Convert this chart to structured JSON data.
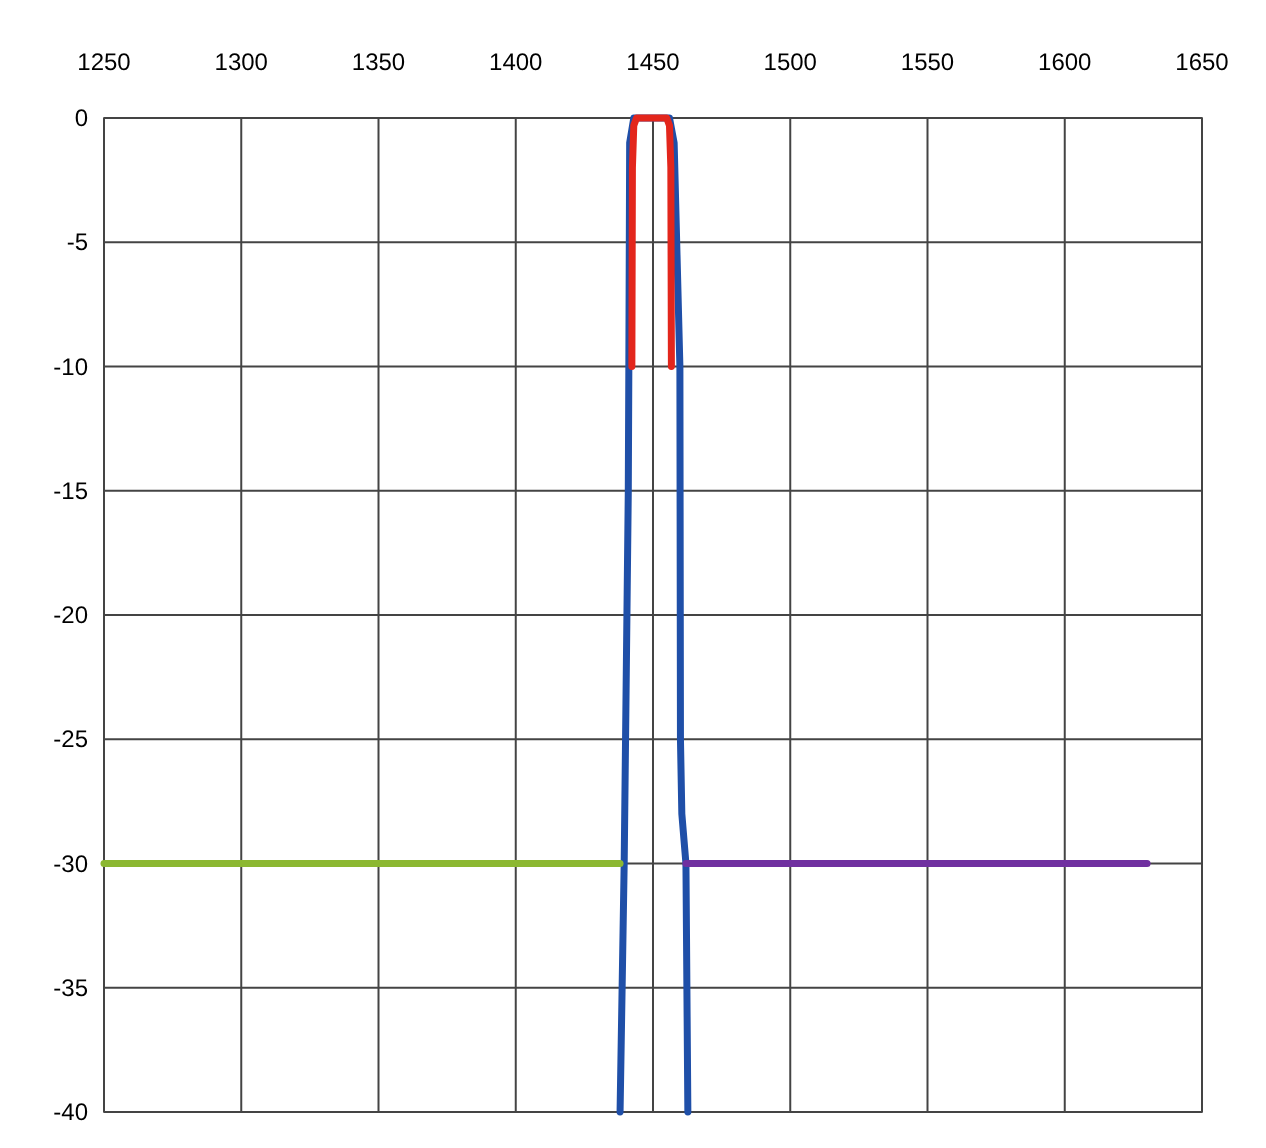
{
  "chart_data": {
    "type": "line",
    "xlim": [
      1250,
      1650
    ],
    "xticks": [
      1250,
      1300,
      1350,
      1400,
      1450,
      1500,
      1550,
      1600,
      1650
    ],
    "ylim": [
      -40,
      0
    ],
    "yticks": [
      0,
      -5,
      -10,
      -15,
      -20,
      -25,
      -30,
      -35,
      -40
    ],
    "grid": true,
    "marker": "none",
    "line_style": "solid",
    "series": [
      {
        "color": "#1f4fa8",
        "x": [
          1438,
          1439.5,
          1441,
          1441.2,
          1441.5,
          1443,
          1456,
          1457.7,
          1459.8,
          1460,
          1460.5,
          1462,
          1462.7
        ],
        "values": [
          -40,
          -30,
          -15,
          -10,
          -1,
          0,
          0,
          -1,
          -10,
          -25,
          -28,
          -30,
          -40
        ]
      },
      {
        "color": "#e3261c",
        "x": [
          1442.3,
          1442.5,
          1443,
          1444,
          1455,
          1456,
          1456.5,
          1456.7
        ],
        "values": [
          -10,
          -2,
          -0.3,
          0,
          0,
          -0.3,
          -2,
          -10
        ]
      },
      {
        "color": "#8cb832",
        "x": [
          1250,
          1438
        ],
        "values": [
          -30,
          -30
        ]
      },
      {
        "color": "#7030a0",
        "x": [
          1462,
          1630
        ],
        "values": [
          -30,
          -30
        ]
      }
    ]
  }
}
